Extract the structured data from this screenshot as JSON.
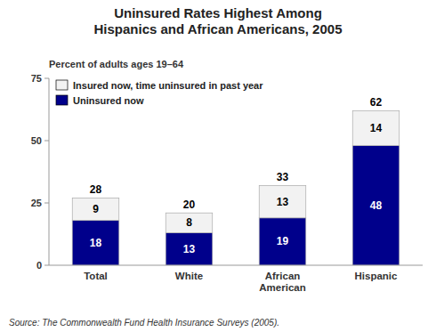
{
  "chart_data": {
    "type": "bar",
    "stacked": true,
    "title": "Uninsured Rates Highest Among\nHispanics and African Americans, 2005",
    "ylabel": "Percent of adults ages 19–64",
    "categories": [
      "Total",
      "White",
      "African\nAmerican",
      "Hispanic"
    ],
    "series": [
      {
        "name": "Uninsured now",
        "color": "#00008B",
        "values": [
          18,
          13,
          19,
          48
        ]
      },
      {
        "name": "Insured now, time uninsured in past year",
        "color": "#f2f2f2",
        "values": [
          9,
          8,
          13,
          14
        ]
      }
    ],
    "totals": [
      28,
      20,
      33,
      62
    ],
    "ylim": [
      0,
      75
    ],
    "yticks": [
      0,
      25,
      50,
      75
    ],
    "grid": false,
    "legend": "upper left",
    "data_labels": true,
    "source": "Source: The Commonwealth Fund Health Insurance Surveys (2005)."
  }
}
